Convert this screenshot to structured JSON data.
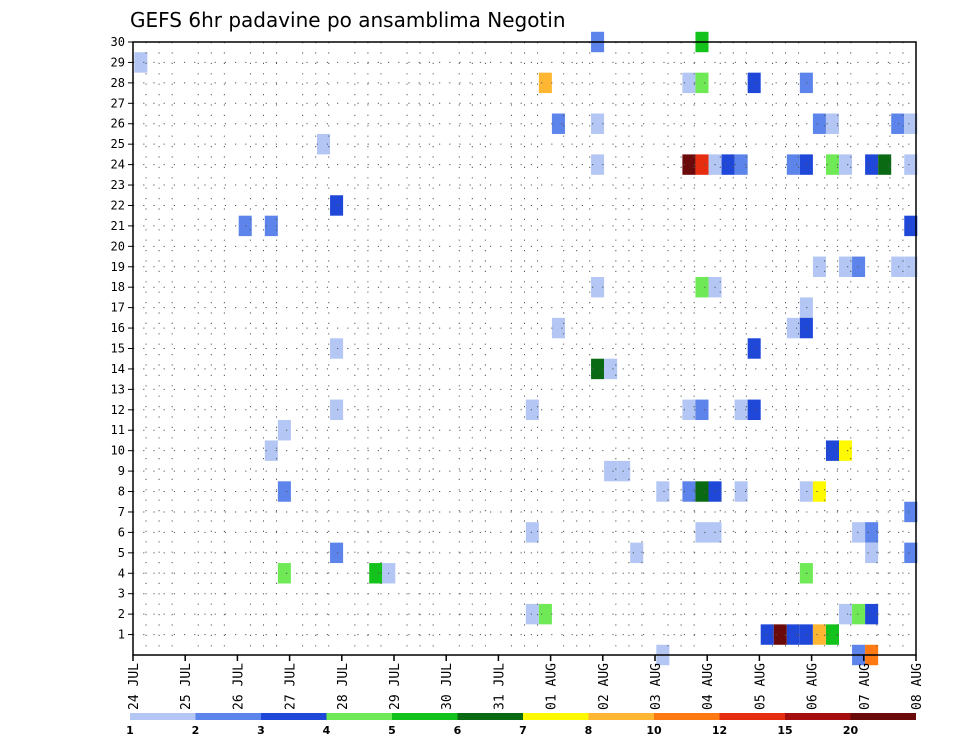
{
  "chart_data": {
    "type": "heatmap",
    "title": "GEFS 6hr padavine po ansamblima Negotin",
    "y_ticks": [
      1,
      2,
      3,
      4,
      5,
      6,
      7,
      8,
      9,
      10,
      11,
      12,
      13,
      14,
      15,
      16,
      17,
      18,
      19,
      20,
      21,
      22,
      23,
      24,
      25,
      26,
      27,
      28,
      29,
      30
    ],
    "x_ticks": [
      "24 JUL",
      "25 JUL",
      "26 JUL",
      "27 JUL",
      "28 JUL",
      "29 JUL",
      "30 JUL",
      "31 JUL",
      "01 AUG",
      "02 AUG",
      "03 AUG",
      "04 AUG",
      "05 AUG",
      "06 AUG",
      "07 AUG",
      "08 AUG"
    ],
    "x_range_days": [
      0,
      15
    ],
    "y_range": [
      0,
      30
    ],
    "grid": true,
    "legend_placement": "bottom",
    "legend": {
      "labels": [
        "1",
        "2",
        "3",
        "4",
        "5",
        "6",
        "7",
        "8",
        "10",
        "12",
        "15",
        "20"
      ],
      "colors": [
        "#b3c6f4",
        "#5c84ea",
        "#1f48d8",
        "#6fea56",
        "#14c21c",
        "#0a6a14",
        "#fffa00",
        "#ffb733",
        "#ff7a12",
        "#e62d10",
        "#a50e0e",
        "#6a0a0a"
      ]
    },
    "cells": [
      {
        "t": 0.15,
        "m": 29,
        "c": 0
      },
      {
        "t": 2.15,
        "m": 21,
        "c": 1
      },
      {
        "t": 2.65,
        "m": 21,
        "c": 1
      },
      {
        "t": 2.65,
        "m": 10,
        "c": 0
      },
      {
        "t": 2.9,
        "m": 11,
        "c": 0
      },
      {
        "t": 2.9,
        "m": 8,
        "c": 1
      },
      {
        "t": 2.9,
        "m": 4,
        "c": 3
      },
      {
        "t": 3.65,
        "m": 25,
        "c": 0
      },
      {
        "t": 3.9,
        "m": 22,
        "c": 2
      },
      {
        "t": 3.9,
        "m": 15,
        "c": 0
      },
      {
        "t": 3.9,
        "m": 12,
        "c": 0
      },
      {
        "t": 3.9,
        "m": 5,
        "c": 1
      },
      {
        "t": 4.65,
        "m": 4,
        "c": 4
      },
      {
        "t": 4.9,
        "m": 4,
        "c": 0
      },
      {
        "t": 7.65,
        "m": 12,
        "c": 0
      },
      {
        "t": 7.65,
        "m": 6,
        "c": 0
      },
      {
        "t": 7.65,
        "m": 2,
        "c": 0
      },
      {
        "t": 7.9,
        "m": 28,
        "c": 7
      },
      {
        "t": 7.9,
        "m": 2,
        "c": 3
      },
      {
        "t": 8.15,
        "m": 26,
        "c": 1
      },
      {
        "t": 8.15,
        "m": 16,
        "c": 0
      },
      {
        "t": 8.9,
        "m": 30,
        "c": 1
      },
      {
        "t": 8.9,
        "m": 26,
        "c": 0
      },
      {
        "t": 8.9,
        "m": 24,
        "c": 0
      },
      {
        "t": 8.9,
        "m": 18,
        "c": 0
      },
      {
        "t": 8.9,
        "m": 14,
        "c": 5
      },
      {
        "t": 9.15,
        "m": 14,
        "c": 0
      },
      {
        "t": 9.15,
        "m": 9,
        "c": 0
      },
      {
        "t": 9.4,
        "m": 9,
        "c": 0
      },
      {
        "t": 9.65,
        "m": 5,
        "c": 0
      },
      {
        "t": 10.15,
        "m": 8,
        "c": 0
      },
      {
        "t": 10.15,
        "m": 0,
        "c": 0
      },
      {
        "t": 10.65,
        "m": 28,
        "c": 0
      },
      {
        "t": 10.65,
        "m": 24,
        "c": 11
      },
      {
        "t": 10.65,
        "m": 12,
        "c": 0
      },
      {
        "t": 10.65,
        "m": 8,
        "c": 1
      },
      {
        "t": 10.9,
        "m": 30,
        "c": 4
      },
      {
        "t": 10.9,
        "m": 28,
        "c": 3
      },
      {
        "t": 10.9,
        "m": 24,
        "c": 9
      },
      {
        "t": 10.9,
        "m": 18,
        "c": 3
      },
      {
        "t": 10.9,
        "m": 12,
        "c": 1
      },
      {
        "t": 10.9,
        "m": 8,
        "c": 5
      },
      {
        "t": 10.9,
        "m": 6,
        "c": 0
      },
      {
        "t": 11.15,
        "m": 24,
        "c": 0
      },
      {
        "t": 11.15,
        "m": 18,
        "c": 0
      },
      {
        "t": 11.15,
        "m": 8,
        "c": 2
      },
      {
        "t": 11.15,
        "m": 6,
        "c": 0
      },
      {
        "t": 11.4,
        "m": 24,
        "c": 2
      },
      {
        "t": 11.65,
        "m": 24,
        "c": 1
      },
      {
        "t": 11.65,
        "m": 12,
        "c": 0
      },
      {
        "t": 11.65,
        "m": 8,
        "c": 0
      },
      {
        "t": 11.9,
        "m": 28,
        "c": 2
      },
      {
        "t": 11.9,
        "m": 15,
        "c": 2
      },
      {
        "t": 11.9,
        "m": 12,
        "c": 2
      },
      {
        "t": 12.15,
        "m": 1,
        "c": 2
      },
      {
        "t": 12.4,
        "m": 1,
        "c": 11
      },
      {
        "t": 12.65,
        "m": 1,
        "c": 2
      },
      {
        "t": 12.65,
        "m": 24,
        "c": 1
      },
      {
        "t": 12.65,
        "m": 16,
        "c": 0
      },
      {
        "t": 12.9,
        "m": 28,
        "c": 1
      },
      {
        "t": 12.9,
        "m": 24,
        "c": 2
      },
      {
        "t": 12.9,
        "m": 17,
        "c": 0
      },
      {
        "t": 12.9,
        "m": 16,
        "c": 2
      },
      {
        "t": 12.9,
        "m": 8,
        "c": 0
      },
      {
        "t": 12.9,
        "m": 4,
        "c": 3
      },
      {
        "t": 12.9,
        "m": 1,
        "c": 2
      },
      {
        "t": 13.15,
        "m": 26,
        "c": 1
      },
      {
        "t": 13.15,
        "m": 19,
        "c": 0
      },
      {
        "t": 13.15,
        "m": 8,
        "c": 6
      },
      {
        "t": 13.15,
        "m": 1,
        "c": 7
      },
      {
        "t": 13.4,
        "m": 26,
        "c": 0
      },
      {
        "t": 13.4,
        "m": 24,
        "c": 3
      },
      {
        "t": 13.4,
        "m": 10,
        "c": 2
      },
      {
        "t": 13.4,
        "m": 1,
        "c": 4
      },
      {
        "t": 13.65,
        "m": 24,
        "c": 0
      },
      {
        "t": 13.65,
        "m": 19,
        "c": 0
      },
      {
        "t": 13.65,
        "m": 10,
        "c": 6
      },
      {
        "t": 13.65,
        "m": 2,
        "c": 0
      },
      {
        "t": 13.9,
        "m": 19,
        "c": 1
      },
      {
        "t": 13.9,
        "m": 6,
        "c": 0
      },
      {
        "t": 13.9,
        "m": 2,
        "c": 3
      },
      {
        "t": 13.9,
        "m": 0,
        "c": 1
      },
      {
        "t": 14.15,
        "m": 24,
        "c": 2
      },
      {
        "t": 14.15,
        "m": 6,
        "c": 1
      },
      {
        "t": 14.15,
        "m": 5,
        "c": 0
      },
      {
        "t": 14.15,
        "m": 2,
        "c": 2
      },
      {
        "t": 14.15,
        "m": 0,
        "c": 8
      },
      {
        "t": 14.4,
        "m": 24,
        "c": 5
      },
      {
        "t": 14.65,
        "m": 26,
        "c": 1
      },
      {
        "t": 14.65,
        "m": 19,
        "c": 0
      },
      {
        "t": 14.9,
        "m": 26,
        "c": 0
      },
      {
        "t": 14.9,
        "m": 24,
        "c": 0
      },
      {
        "t": 14.9,
        "m": 21,
        "c": 2
      },
      {
        "t": 14.9,
        "m": 19,
        "c": 0
      },
      {
        "t": 14.9,
        "m": 7,
        "c": 1
      },
      {
        "t": 14.9,
        "m": 5,
        "c": 1
      }
    ]
  }
}
